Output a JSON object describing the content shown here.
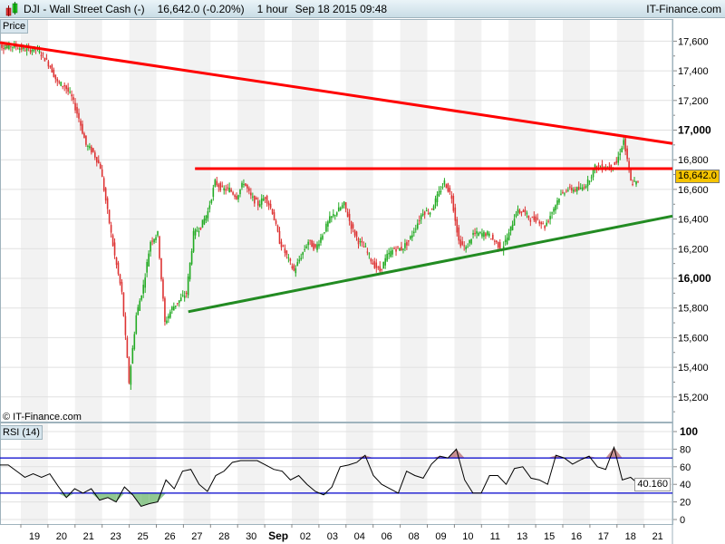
{
  "header": {
    "title": "DJI - Wall Street Cash (-)",
    "last": "16,642.0 (-0.20%)",
    "interval": "1 hour",
    "datetime": "Sep 18 2015 09:48",
    "brand": "IT-Finance.com"
  },
  "price_panel": {
    "label": "Price",
    "copyright": "© IT-Finance.com",
    "last_value_label": "16,642.0"
  },
  "rsi_panel": {
    "label": "RSI (14)",
    "last_value_label": "40.160"
  },
  "colors": {
    "up": "#22aa22",
    "down": "#dd3333",
    "resistance": "#ff0000",
    "support": "#228b22",
    "rsi_line": "#000000",
    "rsi_levels": "#0000cc",
    "overbought_fill": "#c89090",
    "oversold_fill": "#90c890",
    "last_badge": "#f5c400"
  },
  "chart_data": [
    {
      "type": "candlestick",
      "panel": "price",
      "ylim": [
        15100,
        17750
      ],
      "y_ticks": [
        {
          "v": 15200,
          "label": "15,200"
        },
        {
          "v": 15400,
          "label": "15,400"
        },
        {
          "v": 15600,
          "label": "15,600"
        },
        {
          "v": 15800,
          "label": "15,800"
        },
        {
          "v": 16000,
          "label": "16,000",
          "bold": true
        },
        {
          "v": 16200,
          "label": "16,200"
        },
        {
          "v": 16400,
          "label": "16,400"
        },
        {
          "v": 16600,
          "label": "16,600"
        },
        {
          "v": 16800,
          "label": "16,800"
        },
        {
          "v": 17000,
          "label": "17,000",
          "bold": true
        },
        {
          "v": 17200,
          "label": "17,200"
        },
        {
          "v": 17400,
          "label": "17,400"
        },
        {
          "v": 17600,
          "label": "17,600"
        }
      ],
      "x_ticks": [
        "19",
        "20",
        "21",
        "23",
        "25",
        "26",
        "27",
        "28",
        "30",
        "Sep",
        "02",
        "03",
        "04",
        "06",
        "08",
        "09",
        "10",
        "11",
        "13",
        "15",
        "16",
        "17",
        "18",
        "21"
      ],
      "close": [
        17570,
        17560,
        17570,
        17550,
        17540,
        17550,
        17500,
        17430,
        17320,
        17300,
        17220,
        17080,
        16900,
        16850,
        16750,
        16450,
        16150,
        15900,
        15300,
        15750,
        15950,
        16250,
        16300,
        15700,
        15800,
        15850,
        15900,
        16300,
        16350,
        16450,
        16650,
        16600,
        16600,
        16550,
        16650,
        16550,
        16500,
        16550,
        16450,
        16250,
        16150,
        16050,
        16150,
        16250,
        16200,
        16300,
        16400,
        16450,
        16500,
        16350,
        16250,
        16200,
        16100,
        16050,
        16150,
        16200,
        16200,
        16250,
        16350,
        16450,
        16450,
        16550,
        16650,
        16550,
        16250,
        16200,
        16300,
        16300,
        16300,
        16250,
        16200,
        16300,
        16450,
        16450,
        16400,
        16400,
        16350,
        16450,
        16550,
        16600,
        16600,
        16600,
        16650,
        16750,
        16750,
        16750,
        16780,
        16930,
        16650,
        16642
      ],
      "trendlines": [
        {
          "name": "resistance-descending",
          "from": [
            0,
            17590
          ],
          "to": [
            1,
            16910
          ],
          "color": "#ff0000"
        },
        {
          "name": "resistance-horizontal",
          "from": [
            0.29,
            16740
          ],
          "to": [
            1,
            16740
          ],
          "color": "#ff0000"
        },
        {
          "name": "support-ascending",
          "from": [
            0.28,
            15775
          ],
          "to": [
            1,
            16420
          ],
          "color": "#228b22"
        }
      ]
    },
    {
      "type": "line",
      "panel": "rsi",
      "name": "RSI (14)",
      "ylim": [
        0,
        100
      ],
      "levels": [
        30,
        70
      ],
      "y_ticks": [
        {
          "v": 0,
          "label": "0"
        },
        {
          "v": 20,
          "label": "20"
        },
        {
          "v": 40,
          "label": "40"
        },
        {
          "v": 60,
          "label": "60"
        },
        {
          "v": 80,
          "label": "80"
        },
        {
          "v": 100,
          "label": "100",
          "bold": true
        }
      ],
      "values": [
        62,
        62,
        55,
        48,
        52,
        48,
        52,
        38,
        25,
        35,
        30,
        35,
        22,
        25,
        20,
        37,
        28,
        15,
        18,
        20,
        45,
        35,
        55,
        57,
        40,
        32,
        50,
        55,
        65,
        67,
        67,
        67,
        62,
        57,
        55,
        45,
        50,
        40,
        32,
        28,
        37,
        60,
        62,
        65,
        73,
        50,
        40,
        35,
        30,
        55,
        50,
        47,
        63,
        72,
        70,
        80,
        45,
        30,
        30,
        50,
        50,
        40,
        58,
        60,
        47,
        45,
        40,
        73,
        70,
        63,
        68,
        72,
        60,
        57,
        82,
        45,
        48,
        40
      ]
    }
  ]
}
